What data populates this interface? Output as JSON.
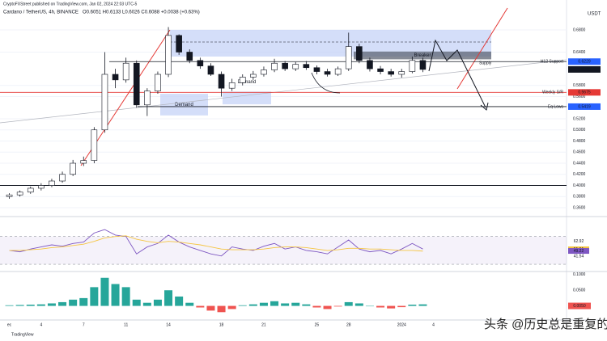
{
  "header": {
    "publisher": "CryptoFXStreet published on TradingView.com, Jan 02, 2024 22:03 UTC-5",
    "symbol": "Cardano / TetherUS, 4h, BINANCE",
    "ohlc": "O0.6051 H0.6133 L0.6026 C0.6088 +0.0038 (+0.63%)"
  },
  "footer": {
    "brand": "TradingView",
    "watermark": "头条 @历史总是重复的"
  },
  "chart_data": [
    {
      "type": "candlestick",
      "y_unit": "USDT",
      "categories": [
        "ec",
        null,
        null,
        "4",
        null,
        null,
        null,
        "7",
        null,
        null,
        null,
        "11",
        null,
        null,
        null,
        "14",
        null,
        null,
        null,
        null,
        "18",
        null,
        null,
        null,
        "21",
        null,
        null,
        null,
        null,
        "25",
        null,
        null,
        "28",
        null,
        null,
        null,
        null,
        "2024",
        null,
        null,
        "4",
        null
      ],
      "open": [
        0.38,
        0.383,
        0.388,
        0.395,
        0.4,
        0.408,
        0.42,
        0.44,
        0.445,
        0.5,
        0.6,
        0.59,
        0.62,
        0.545,
        0.57,
        0.6,
        0.67,
        0.64,
        0.625,
        0.615,
        0.6,
        0.575,
        0.585,
        0.595,
        0.6,
        0.608,
        0.62,
        0.61,
        0.618,
        0.612,
        0.605,
        0.6,
        0.61,
        0.65,
        0.625,
        0.61,
        0.605,
        0.6,
        0.605,
        0.625,
        null,
        null
      ],
      "high": [
        0.386,
        0.391,
        0.398,
        0.404,
        0.412,
        0.425,
        0.446,
        0.452,
        0.505,
        0.64,
        0.61,
        0.63,
        0.625,
        0.575,
        0.605,
        0.685,
        0.672,
        0.645,
        0.63,
        0.62,
        0.605,
        0.592,
        0.6,
        0.606,
        0.614,
        0.628,
        0.624,
        0.622,
        0.624,
        0.616,
        0.61,
        0.614,
        0.675,
        0.655,
        0.63,
        0.615,
        0.61,
        0.61,
        0.632,
        0.63,
        null,
        null
      ],
      "low": [
        0.376,
        0.38,
        0.385,
        0.391,
        0.397,
        0.405,
        0.417,
        0.435,
        0.44,
        0.495,
        0.575,
        0.585,
        0.54,
        0.525,
        0.565,
        0.595,
        0.635,
        0.62,
        0.61,
        0.597,
        0.56,
        0.57,
        0.58,
        0.59,
        0.596,
        0.604,
        0.606,
        0.606,
        0.608,
        0.6,
        0.596,
        0.597,
        0.606,
        0.62,
        0.605,
        0.6,
        0.596,
        0.594,
        0.602,
        0.604,
        null,
        null
      ],
      "close": [
        0.383,
        0.388,
        0.395,
        0.4,
        0.408,
        0.42,
        0.44,
        0.445,
        0.5,
        0.6,
        0.59,
        0.62,
        0.545,
        0.57,
        0.6,
        0.67,
        0.64,
        0.625,
        0.615,
        0.6,
        0.575,
        0.585,
        0.595,
        0.6,
        0.608,
        0.62,
        0.61,
        0.618,
        0.612,
        0.605,
        0.6,
        0.61,
        0.65,
        0.625,
        0.61,
        0.605,
        0.6,
        0.605,
        0.625,
        0.6088,
        null,
        null
      ],
      "up_color": "#ffffff",
      "down_color": "#131722",
      "ylim": [
        0.3484,
        0.7265
      ],
      "yticks": [
        {
          "value": 0.68,
          "label": "0.6800"
        },
        {
          "value": 0.64,
          "label": "0.6400"
        },
        {
          "value": 0.58,
          "label": "0.5800"
        },
        {
          "value": 0.56,
          "label": "0.5600"
        },
        {
          "value": 0.52,
          "label": "0.5200"
        },
        {
          "value": 0.5,
          "label": "0.5000"
        },
        {
          "value": 0.48,
          "label": "0.4800"
        },
        {
          "value": 0.46,
          "label": "0.4600"
        },
        {
          "value": 0.44,
          "label": "0.4400"
        },
        {
          "value": 0.42,
          "label": "0.4200"
        },
        {
          "value": 0.4,
          "label": "0.4000"
        },
        {
          "value": 0.38,
          "label": "0.3800"
        },
        {
          "value": 0.36,
          "label": "0.3600"
        }
      ],
      "grid": true,
      "levels": [
        {
          "label": "H12 Support",
          "value": 0.6229,
          "color": "#2962ff"
        },
        {
          "label": "Weekly S/R",
          "value": 0.5675,
          "color": "#e53935"
        },
        {
          "label": "Eq Lows",
          "value": 0.5419,
          "color": "#2962ff"
        },
        {
          "value": 0.4,
          "color": "#131722"
        }
      ],
      "zones": [
        {
          "top": 0.68,
          "bottom": 0.632,
          "color": "#c5d3f7"
        },
        {
          "label": "Breaker",
          "top": 0.641,
          "bottom": 0.627,
          "color": "#5d6473"
        },
        {
          "label": "Demand",
          "top": 0.565,
          "bottom": 0.526,
          "color": "#c5d3f7"
        },
        {
          "label": "Demand",
          "top": 0.569,
          "bottom": 0.546,
          "color": "#c5d3f7"
        }
      ],
      "annotations": [
        {
          "text": "Supply",
          "value": 0.62
        }
      ]
    },
    {
      "type": "line",
      "series": [
        {
          "color": "#7e57c2",
          "values": [
            50,
            48,
            52,
            55,
            58,
            56,
            60,
            62,
            75,
            80,
            72,
            70,
            45,
            55,
            60,
            72,
            62,
            55,
            50,
            45,
            42,
            55,
            52,
            50,
            56,
            60,
            52,
            55,
            50,
            48,
            45,
            55,
            65,
            52,
            48,
            50,
            45,
            52,
            60,
            52,
            null,
            null
          ]
        },
        {
          "color": "#f5c542",
          "values": [
            50,
            50,
            51,
            52,
            54,
            55,
            57,
            59,
            63,
            68,
            70,
            71,
            66,
            63,
            61,
            63,
            62,
            60,
            58,
            55,
            52,
            51,
            51,
            51,
            52,
            54,
            55,
            55,
            54,
            52,
            50,
            51,
            53,
            53,
            52,
            52,
            51,
            50,
            50,
            49,
            null,
            null
          ]
        }
      ],
      "ylim": [
        22,
        94
      ],
      "band": [
        30,
        70
      ],
      "right_labels": [
        {
          "value": 62.92,
          "label": "62.92"
        },
        {
          "value": 51.61,
          "label": "51.61"
        },
        {
          "value": 49.22,
          "label": "49.22"
        },
        {
          "value": 41.54,
          "label": "41.54"
        }
      ]
    },
    {
      "type": "bar",
      "values": [
        0.002,
        0.003,
        0.004,
        0.005,
        0.008,
        0.012,
        0.02,
        0.025,
        0.06,
        0.09,
        0.07,
        0.06,
        0.02,
        0.01,
        0.02,
        0.05,
        0.03,
        0.01,
        -0.005,
        -0.015,
        -0.02,
        -0.01,
        0.002,
        0.005,
        0.01,
        0.015,
        0.008,
        0.01,
        0.005,
        -0.005,
        -0.01,
        -0.002,
        0.012,
        0.008,
        0.0,
        -0.005,
        -0.008,
        -0.004,
        0.004,
        0.005,
        null,
        null
      ],
      "last_value_label": "0.0050",
      "pos_color": "#26a69a",
      "neg_color": "#ef5350",
      "ylim": [
        -0.0425,
        0.1075
      ],
      "yticks": [
        {
          "value": 0.1,
          "label": "0.1000"
        },
        {
          "value": 0.05,
          "label": "0.0500"
        }
      ]
    }
  ]
}
